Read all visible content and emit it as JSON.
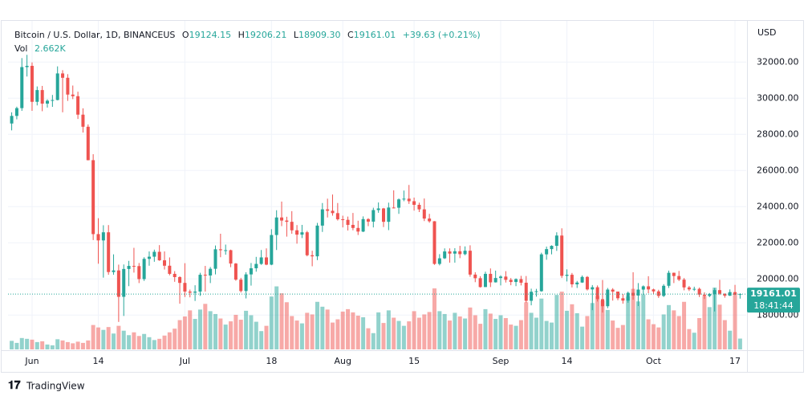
{
  "chart_data": {
    "type": "candlestick",
    "title": "Bitcoin / U.S. Dollar, 1D, BINANCEUS",
    "header_labels": [
      "O",
      "H",
      "L",
      "C"
    ],
    "header_values": [
      "19124.15",
      "19206.21",
      "18909.30",
      "19161.01"
    ],
    "change": "+39.63 (+0.21%)",
    "volume_label": "Vol",
    "volume_value_label": "2.662K",
    "currency": "USD",
    "countdown": "18:41:44",
    "brand": "TradingView",
    "up_color": "#26a69a",
    "down_color": "#ef5350",
    "grid": true,
    "xlim": [
      -0.72,
      144.2
    ],
    "xticks": [
      {
        "value": 4,
        "label": "Jun"
      },
      {
        "value": 17,
        "label": "14"
      },
      {
        "value": 34,
        "label": "Jul"
      },
      {
        "value": 51,
        "label": "18"
      },
      {
        "value": 65,
        "label": "Aug"
      },
      {
        "value": 79,
        "label": "15"
      },
      {
        "value": 96,
        "label": "Sep"
      },
      {
        "value": 109,
        "label": "14"
      },
      {
        "value": 126,
        "label": "Oct"
      },
      {
        "value": 142,
        "label": "17"
      }
    ],
    "ylim": [
      16100,
      34100
    ],
    "yticks": [
      {
        "value": 18000,
        "label": "18000.00"
      },
      {
        "value": 20000,
        "label": "20000.00"
      },
      {
        "value": 22000,
        "label": "22000.00"
      },
      {
        "value": 24000,
        "label": "24000.00"
      },
      {
        "value": 26000,
        "label": "26000.00"
      },
      {
        "value": 28000,
        "label": "28000.00"
      },
      {
        "value": 30000,
        "label": "30000.00"
      },
      {
        "value": 32000,
        "label": "32000.00"
      }
    ],
    "volume_lim": [
      0,
      80
    ],
    "open": [
      28600,
      29020,
      29450,
      31720,
      31790,
      29800,
      30450,
      29700,
      29860,
      29900,
      31370,
      31130,
      30200,
      30110,
      29090,
      28420,
      26570,
      22480,
      22130,
      22580,
      20380,
      20470,
      19010,
      20550,
      20720,
      20710,
      19990,
      21110,
      21230,
      21500,
      21030,
      20730,
      20280,
      20100,
      19780,
      19300,
      19240,
      19300,
      20230,
      20190,
      20560,
      21640,
      21590,
      21590,
      20850,
      19960,
      19330,
      20250,
      20590,
      20830,
      21190,
      20790,
      22430,
      23400,
      23230,
      23160,
      22690,
      22450,
      22580,
      21310,
      21250,
      22950,
      23850,
      23770,
      23640,
      23300,
      23270,
      22990,
      22820,
      22620,
      23310,
      23170,
      23810,
      23900,
      23160,
      23950,
      23940,
      24400,
      24440,
      24300,
      24100,
      23850,
      23340,
      23190,
      20830,
      21140,
      21520,
      21400,
      21530,
      21370,
      21560,
      20240,
      20040,
      19550,
      20280,
      19810,
      20050,
      20130,
      19950,
      19830,
      19990,
      19790,
      18790,
      19290,
      19320,
      21360,
      21650,
      21830,
      22400,
      20170,
      20230,
      19700,
      19800,
      20110,
      19420,
      19540,
      18880,
      18490,
      19410,
      19300,
      18930,
      18800,
      19230,
      19080,
      19410,
      19590,
      19420,
      19310,
      19060,
      19620,
      20340,
      20160,
      19960,
      19530,
      19420,
      19450,
      19130,
      19060,
      19160,
      19380,
      19180,
      19070,
      19270,
      19124.15
    ],
    "high": [
      29220,
      29530,
      32220,
      32400,
      31980,
      30650,
      30680,
      29940,
      30180,
      31760,
      31550,
      31330,
      30700,
      30360,
      29440,
      28550,
      26900,
      23360,
      22970,
      22980,
      21360,
      20790,
      20800,
      21000,
      21720,
      20880,
      21200,
      21520,
      21620,
      21870,
      21520,
      21190,
      20430,
      20150,
      20870,
      19410,
      19650,
      20340,
      20720,
      20660,
      21850,
      22500,
      21900,
      21620,
      20880,
      20060,
      20370,
      20880,
      21220,
      21600,
      21690,
      22750,
      23800,
      24280,
      23440,
      23750,
      22980,
      22990,
      22660,
      21560,
      23100,
      24200,
      24440,
      24670,
      24200,
      23500,
      23450,
      23650,
      23220,
      23460,
      23360,
      23940,
      24230,
      23930,
      24220,
      24900,
      24450,
      24890,
      25200,
      24500,
      24220,
      24450,
      23600,
      23200,
      21370,
      21690,
      21690,
      21700,
      21830,
      21800,
      21860,
      20370,
      20150,
      20400,
      20580,
      20460,
      20200,
      20430,
      20050,
      20030,
      20170,
      20160,
      19460,
      19450,
      21450,
      21790,
      21860,
      22580,
      22800,
      20530,
      20330,
      19890,
      20190,
      20160,
      19660,
      19640,
      19940,
      19500,
      19490,
      19300,
      19160,
      19300,
      20370,
      19770,
      19640,
      20150,
      19460,
      19400,
      19710,
      20460,
      20350,
      20440,
      20050,
      19610,
      19570,
      19520,
      19260,
      19220,
      19500,
      19950,
      19200,
      19420,
      19670,
      19206.21
    ],
    "low": [
      28220,
      28830,
      29300,
      31200,
      29300,
      29600,
      29280,
      29480,
      29520,
      29880,
      29220,
      29850,
      29950,
      28850,
      28100,
      26560,
      22150,
      20840,
      20070,
      20230,
      20230,
      17620,
      17950,
      19600,
      20350,
      19770,
      19890,
      20730,
      20950,
      21000,
      20520,
      20200,
      19840,
      18630,
      19000,
      18980,
      18780,
      19060,
      19300,
      19770,
      20250,
      21200,
      21340,
      20650,
      19900,
      19250,
      18920,
      19630,
      20400,
      20780,
      20760,
      20760,
      21600,
      22920,
      22340,
      22500,
      21950,
      22260,
      21250,
      20700,
      21040,
      22600,
      23400,
      23500,
      23230,
      22850,
      22680,
      22690,
      22430,
      22590,
      22920,
      22850,
      23660,
      22870,
      22700,
      23900,
      23600,
      24300,
      24150,
      23780,
      23700,
      23200,
      23110,
      20780,
      20750,
      21100,
      20900,
      20900,
      21150,
      21310,
      20120,
      19820,
      19520,
      19550,
      19550,
      19800,
      19640,
      19800,
      19650,
      19600,
      19640,
      18680,
      18540,
      19020,
      19290,
      21060,
      21360,
      21550,
      20050,
      19860,
      19530,
      19500,
      19780,
      19360,
      18270,
      18750,
      18140,
      18380,
      18800,
      18820,
      18630,
      18680,
      18850,
      18500,
      19120,
      19210,
      19160,
      18950,
      19000,
      19500,
      19770,
      19880,
      19370,
      19330,
      19330,
      19000,
      18890,
      18990,
      18200,
      19110,
      18960,
      19060,
      19100,
      18909.3
    ],
    "close": [
      29020,
      29450,
      31720,
      31790,
      29800,
      30450,
      29700,
      29860,
      29900,
      31370,
      31130,
      30200,
      30110,
      29090,
      28420,
      26570,
      22480,
      22130,
      22580,
      20380,
      20470,
      19010,
      20550,
      20720,
      20710,
      19990,
      21110,
      21230,
      21500,
      21030,
      20730,
      20280,
      20100,
      19780,
      19300,
      19240,
      19300,
      20230,
      20190,
      20560,
      21640,
      21590,
      21590,
      20850,
      19960,
      19330,
      20250,
      20590,
      20830,
      21190,
      20790,
      22430,
      23400,
      23230,
      23160,
      22690,
      22450,
      22580,
      21310,
      21250,
      22950,
      23850,
      23770,
      23640,
      23300,
      23270,
      22990,
      22820,
      22620,
      23310,
      23170,
      23810,
      23900,
      23160,
      23950,
      23940,
      24400,
      24440,
      24300,
      24100,
      23850,
      23340,
      23190,
      20830,
      21140,
      21520,
      21400,
      21530,
      21370,
      21560,
      20240,
      20040,
      19550,
      20280,
      19810,
      20050,
      20130,
      19950,
      19830,
      19990,
      19790,
      18790,
      19290,
      19320,
      21360,
      21650,
      21830,
      22400,
      20170,
      20230,
      19700,
      19800,
      20110,
      19420,
      19540,
      18880,
      18490,
      19410,
      19300,
      18930,
      18800,
      19230,
      19080,
      19410,
      19590,
      19420,
      19310,
      19060,
      19620,
      20340,
      20160,
      19960,
      19530,
      19420,
      19450,
      19130,
      19060,
      19160,
      19380,
      19180,
      19070,
      19270,
      19121.38,
      19161.01
    ],
    "volume": [
      2.1,
      1.6,
      2.8,
      2.6,
      2.4,
      1.8,
      2.0,
      1.2,
      1.0,
      2.5,
      2.2,
      1.8,
      1.5,
      1.9,
      1.6,
      2.2,
      6.0,
      5.4,
      4.8,
      5.5,
      3.9,
      5.8,
      4.6,
      3.5,
      4.2,
      3.3,
      3.8,
      3.0,
      2.3,
      2.6,
      3.4,
      4.2,
      5.1,
      7.2,
      8.1,
      9.6,
      7.5,
      9.8,
      11.2,
      9.4,
      8.7,
      7.6,
      6.1,
      6.9,
      8.5,
      7.3,
      9.5,
      8.4,
      6.8,
      4.5,
      5.8,
      13.0,
      15.5,
      13.8,
      11.6,
      8.2,
      7.1,
      6.4,
      9.0,
      8.6,
      11.7,
      10.5,
      9.8,
      6.6,
      7.4,
      9.3,
      9.9,
      9.1,
      8.3,
      7.9,
      5.2,
      4.0,
      9.1,
      6.5,
      9.6,
      7.8,
      7.0,
      5.8,
      6.9,
      9.4,
      7.8,
      8.6,
      9.2,
      15.0,
      9.4,
      8.7,
      7.1,
      9.0,
      8.1,
      7.6,
      10.3,
      8.4,
      6.3,
      9.9,
      8.8,
      7.5,
      8.4,
      7.7,
      6.1,
      5.8,
      7.2,
      11.6,
      9.0,
      7.8,
      12.5,
      7.0,
      6.6,
      13.4,
      14.2,
      9.5,
      11.1,
      8.9,
      5.6,
      8.2,
      11.4,
      13.1,
      12.0,
      9.7,
      7.1,
      5.3,
      6.0,
      13.0,
      14.9,
      11.8,
      13.5,
      7.4,
      6.2,
      5.4,
      8.6,
      10.9,
      9.6,
      8.2,
      11.7,
      5.0,
      4.1,
      7.7,
      13.1,
      10.4,
      15.2,
      11.0,
      7.2,
      4.6,
      13.4,
      2.662
    ]
  }
}
